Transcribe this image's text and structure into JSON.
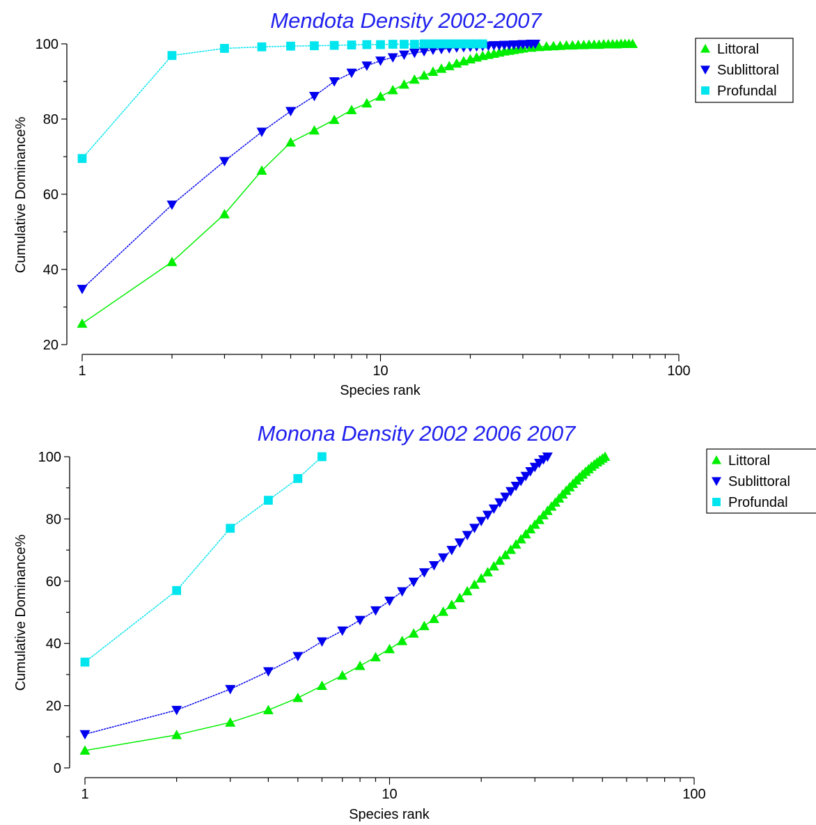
{
  "chart_data": [
    {
      "type": "line",
      "title": "Mendota Density 2002-2007",
      "xlabel": "Species rank",
      "ylabel": "Cumulative Dominance%",
      "xscale": "log",
      "xlim": [
        1,
        100
      ],
      "ylim": [
        20,
        100
      ],
      "x_ticks": [
        "1",
        "10",
        "100"
      ],
      "y_ticks": [
        "20",
        "40",
        "60",
        "80",
        "100"
      ],
      "grid": false,
      "legend_position": "right",
      "series": [
        {
          "name": "Littoral",
          "color": "#00ee00",
          "marker": "triangle-up",
          "points": [
            [
              1,
              25.6
            ],
            [
              2,
              42
            ],
            [
              3,
              54.7
            ],
            [
              4,
              66.3
            ],
            [
              5,
              73.8
            ],
            [
              6,
              77
            ],
            [
              7,
              79.8
            ],
            [
              8,
              82.4
            ],
            [
              9,
              84.2
            ],
            [
              10,
              86
            ],
            [
              11,
              87.7
            ],
            [
              12,
              89.2
            ],
            [
              13,
              90.5
            ],
            [
              14,
              91.6
            ],
            [
              15,
              92.6
            ],
            [
              16,
              93.4
            ],
            [
              17,
              94.1
            ],
            [
              18,
              94.8
            ],
            [
              19,
              95.4
            ],
            [
              20,
              95.9
            ],
            [
              21,
              96.4
            ],
            [
              22,
              96.8
            ],
            [
              23,
              97.1
            ],
            [
              24,
              97.4
            ],
            [
              25,
              97.7
            ],
            [
              26,
              98
            ],
            [
              27,
              98.2
            ],
            [
              28,
              98.4
            ],
            [
              29,
              98.6
            ],
            [
              30,
              98.8
            ],
            [
              32,
              99
            ],
            [
              34,
              99.2
            ],
            [
              36,
              99.3
            ],
            [
              38,
              99.4
            ],
            [
              40,
              99.5
            ],
            [
              42,
              99.6
            ],
            [
              44,
              99.6
            ],
            [
              46,
              99.7
            ],
            [
              48,
              99.7
            ],
            [
              50,
              99.8
            ],
            [
              52,
              99.8
            ],
            [
              54,
              99.8
            ],
            [
              56,
              99.9
            ],
            [
              58,
              99.9
            ],
            [
              60,
              99.9
            ],
            [
              62,
              99.9
            ],
            [
              64,
              100
            ],
            [
              66,
              100
            ],
            [
              68,
              100
            ],
            [
              70,
              100
            ]
          ]
        },
        {
          "name": "Sublittoral",
          "color": "#0000ee",
          "marker": "triangle-down",
          "points": [
            [
              1,
              34.8
            ],
            [
              2,
              57.2
            ],
            [
              3,
              68.8
            ],
            [
              4,
              76.6
            ],
            [
              5,
              82.1
            ],
            [
              6,
              86.1
            ],
            [
              7,
              90
            ],
            [
              8,
              92.3
            ],
            [
              9,
              94.2
            ],
            [
              10,
              95.5
            ],
            [
              11,
              96.4
            ],
            [
              12,
              97.1
            ],
            [
              13,
              97.6
            ],
            [
              14,
              98
            ],
            [
              15,
              98.4
            ],
            [
              16,
              98.6
            ],
            [
              17,
              98.8
            ],
            [
              18,
              99
            ],
            [
              19,
              99.1
            ],
            [
              20,
              99.2
            ],
            [
              21,
              99.3
            ],
            [
              22,
              99.4
            ],
            [
              23,
              99.5
            ],
            [
              24,
              99.6
            ],
            [
              25,
              99.6
            ],
            [
              26,
              99.7
            ],
            [
              27,
              99.7
            ],
            [
              28,
              99.8
            ],
            [
              29,
              99.8
            ],
            [
              30,
              99.9
            ],
            [
              31,
              99.9
            ],
            [
              32,
              100
            ],
            [
              33,
              100
            ]
          ]
        },
        {
          "name": "Profundal",
          "color": "#00e5ee",
          "marker": "square",
          "points": [
            [
              1,
              69.5
            ],
            [
              2,
              96.9
            ],
            [
              3,
              98.8
            ],
            [
              4,
              99.2
            ],
            [
              5,
              99.4
            ],
            [
              6,
              99.5
            ],
            [
              7,
              99.6
            ],
            [
              8,
              99.7
            ],
            [
              9,
              99.8
            ],
            [
              10,
              99.8
            ],
            [
              11,
              99.9
            ],
            [
              12,
              99.9
            ],
            [
              13,
              99.9
            ],
            [
              14,
              100
            ],
            [
              15,
              100
            ],
            [
              16,
              100
            ],
            [
              17,
              100
            ],
            [
              18,
              100
            ],
            [
              19,
              100
            ],
            [
              20,
              100
            ],
            [
              21,
              100
            ],
            [
              22,
              100
            ]
          ]
        }
      ]
    },
    {
      "type": "line",
      "title": "Monona Density 2002 2006 2007",
      "xlabel": "Species rank",
      "ylabel": "Cumulative Dominance%",
      "xscale": "log",
      "xlim": [
        1,
        100
      ],
      "ylim": [
        0,
        100
      ],
      "x_ticks": [
        "1",
        "10",
        "100"
      ],
      "y_ticks": [
        "0",
        "20",
        "40",
        "60",
        "80",
        "100"
      ],
      "grid": false,
      "legend_position": "right",
      "series": [
        {
          "name": "Littoral",
          "color": "#00ee00",
          "marker": "triangle-up",
          "points": [
            [
              1,
              5.6
            ],
            [
              2,
              10.6
            ],
            [
              3,
              14.6
            ],
            [
              4,
              18.6
            ],
            [
              5,
              22.5
            ],
            [
              6,
              26.4
            ],
            [
              7,
              29.7
            ],
            [
              8,
              32.8
            ],
            [
              9,
              35.6
            ],
            [
              10,
              38.2
            ],
            [
              11,
              40.8
            ],
            [
              12,
              43.2
            ],
            [
              13,
              45.6
            ],
            [
              14,
              47.9
            ],
            [
              15,
              50.2
            ],
            [
              16,
              52.4
            ],
            [
              17,
              54.6
            ],
            [
              18,
              56.8
            ],
            [
              19,
              58.9
            ],
            [
              20,
              60.9
            ],
            [
              21,
              62.9
            ],
            [
              22,
              64.8
            ],
            [
              23,
              66.6
            ],
            [
              24,
              68.4
            ],
            [
              25,
              70.1
            ],
            [
              26,
              71.8
            ],
            [
              27,
              73.5
            ],
            [
              28,
              75.1
            ],
            [
              29,
              76.7
            ],
            [
              30,
              78.2
            ],
            [
              31,
              79.7
            ],
            [
              32,
              81.2
            ],
            [
              33,
              82.6
            ],
            [
              34,
              84
            ],
            [
              35,
              85.3
            ],
            [
              36,
              86.6
            ],
            [
              37,
              87.9
            ],
            [
              38,
              89.1
            ],
            [
              39,
              90.2
            ],
            [
              40,
              91.3
            ],
            [
              41,
              92.4
            ],
            [
              42,
              93.4
            ],
            [
              43,
              94.3
            ],
            [
              44,
              95.2
            ],
            [
              45,
              96
            ],
            [
              46,
              96.8
            ],
            [
              47,
              97.5
            ],
            [
              48,
              98.2
            ],
            [
              49,
              98.8
            ],
            [
              50,
              99.4
            ],
            [
              51,
              100
            ]
          ]
        },
        {
          "name": "Sublittoral",
          "color": "#0000ee",
          "marker": "triangle-down",
          "points": [
            [
              1,
              10.8
            ],
            [
              2,
              18.6
            ],
            [
              3,
              25.3
            ],
            [
              4,
              31
            ],
            [
              5,
              35.9
            ],
            [
              6,
              40.6
            ],
            [
              7,
              44.1
            ],
            [
              8,
              47.5
            ],
            [
              9,
              50.6
            ],
            [
              10,
              53.7
            ],
            [
              11,
              56.7
            ],
            [
              12,
              59.8
            ],
            [
              13,
              62.8
            ],
            [
              14,
              65.1
            ],
            [
              15,
              67.6
            ],
            [
              16,
              70
            ],
            [
              17,
              72.4
            ],
            [
              18,
              74.8
            ],
            [
              19,
              77.1
            ],
            [
              20,
              79.3
            ],
            [
              21,
              81.3
            ],
            [
              22,
              83.3
            ],
            [
              23,
              85.3
            ],
            [
              24,
              87.1
            ],
            [
              25,
              88.9
            ],
            [
              26,
              90.6
            ],
            [
              27,
              92.2
            ],
            [
              28,
              93.8
            ],
            [
              29,
              95.3
            ],
            [
              30,
              96.7
            ],
            [
              31,
              98
            ],
            [
              32,
              99.1
            ],
            [
              33,
              100
            ]
          ]
        },
        {
          "name": "Profundal",
          "color": "#00e5ee",
          "marker": "square",
          "points": [
            [
              1,
              34
            ],
            [
              2,
              57
            ],
            [
              3,
              77
            ],
            [
              4,
              86
            ],
            [
              5,
              93
            ],
            [
              6,
              100
            ]
          ]
        }
      ]
    }
  ]
}
